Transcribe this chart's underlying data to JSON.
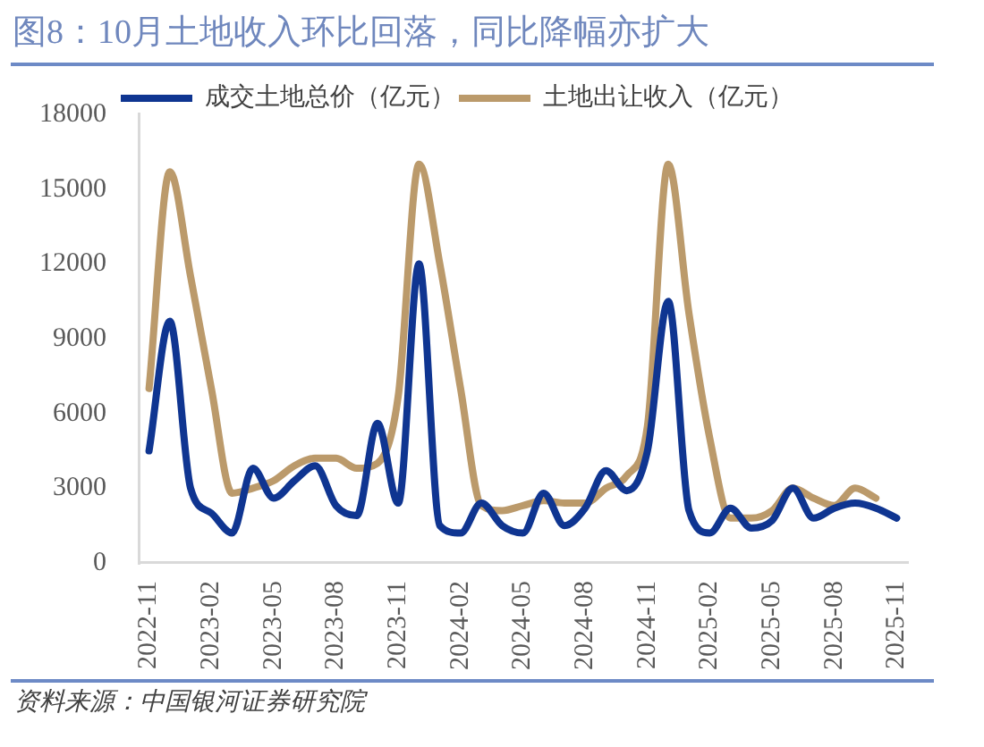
{
  "chart_data": {
    "type": "line",
    "title": "图8：10月土地收入环比回落，同比降幅亦扩大",
    "categories": [
      "2022-11",
      null,
      null,
      "2023-02",
      null,
      null,
      "2023-05",
      null,
      null,
      "2023-08",
      null,
      null,
      "2023-11",
      null,
      null,
      "2024-02",
      null,
      null,
      "2024-05",
      null,
      null,
      "2024-08",
      null,
      null,
      "2024-11",
      null,
      null,
      "2025-02",
      null,
      null,
      "2025-05",
      null,
      null,
      "2025-08",
      null,
      null,
      "2025-11"
    ],
    "series": [
      {
        "name": "成交土地总价（亿元）",
        "color": "#0f3591",
        "values": [
          4500,
          9700,
          3000,
          2000,
          1200,
          3800,
          2600,
          3300,
          3900,
          2300,
          1900,
          5600,
          2400,
          12000,
          1500,
          1200,
          2400,
          1500,
          1200,
          2800,
          1500,
          2200,
          3700,
          2900,
          4500,
          10500,
          2100,
          1200,
          2200,
          1400,
          1700,
          3000,
          1800,
          2200,
          2400,
          2200,
          1800
        ]
      },
      {
        "name": "土地出让收入（亿元）",
        "color": "#bb9a6b",
        "values": [
          7000,
          15700,
          11500,
          7000,
          2800,
          3000,
          3300,
          3900,
          4200,
          4200,
          3800,
          4000,
          6700,
          16000,
          12000,
          7000,
          2300,
          2100,
          2300,
          2500,
          2400,
          2400,
          3000,
          3500,
          5500,
          16000,
          10000,
          5000,
          1800,
          1800,
          2100,
          3000,
          2600,
          2300,
          3000,
          2600,
          null
        ]
      }
    ],
    "ylim": [
      0,
      18000
    ],
    "yticks": [
      0,
      3000,
      6000,
      9000,
      12000,
      15000,
      18000
    ],
    "grid": false,
    "legend": "top",
    "marker": "none",
    "line_style": "solid",
    "annotations": [
      "资料来源：中国银河证券研究院"
    ]
  }
}
